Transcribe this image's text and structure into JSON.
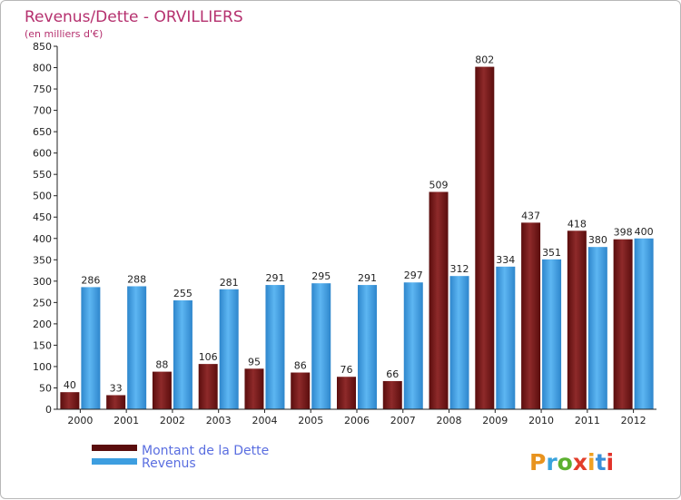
{
  "chart_data": {
    "type": "bar",
    "title": "Revenus/Dette - ORVILLIERS",
    "subtitle": "(en milliers d'€)",
    "categories": [
      "2000",
      "2001",
      "2002",
      "2003",
      "2004",
      "2005",
      "2006",
      "2007",
      "2008",
      "2009",
      "2010",
      "2011",
      "2012"
    ],
    "series": [
      {
        "name": "Montant de la Dette",
        "color": "#7a1e1e",
        "values": [
          40,
          33,
          88,
          106,
          95,
          86,
          76,
          66,
          509,
          802,
          437,
          418,
          398
        ]
      },
      {
        "name": "Revenus",
        "color": "#3d9ee0",
        "values": [
          286,
          288,
          255,
          281,
          291,
          295,
          291,
          297,
          312,
          334,
          351,
          380,
          400
        ]
      }
    ],
    "ylim": [
      0,
      850
    ],
    "yticks": [
      0,
      50,
      100,
      150,
      200,
      250,
      300,
      350,
      400,
      450,
      500,
      550,
      600,
      650,
      700,
      750,
      800,
      850
    ],
    "grid": false,
    "legend_position": "bottom-left"
  },
  "brand": {
    "text": "Proxiti"
  }
}
